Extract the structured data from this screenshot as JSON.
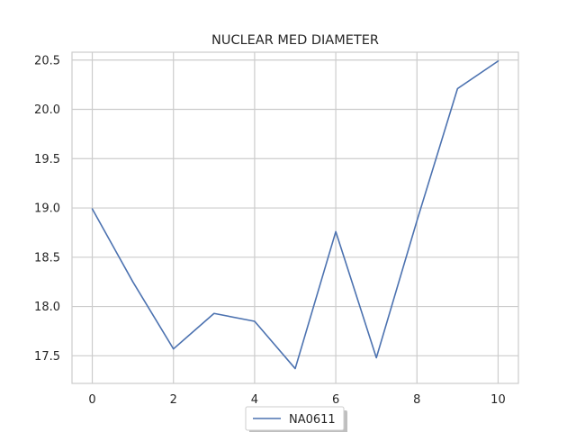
{
  "chart_data": {
    "type": "line",
    "title": "NUCLEAR MED DIAMETER",
    "xlabel": "",
    "ylabel": "",
    "xlim": [
      -0.5,
      10.5
    ],
    "ylim": [
      17.22,
      20.58
    ],
    "xticks": [
      0,
      2,
      4,
      6,
      8,
      10
    ],
    "yticks": [
      17.5,
      18.0,
      18.5,
      19.0,
      19.5,
      20.0,
      20.5
    ],
    "ytick_labels": [
      "17.5",
      "18.0",
      "18.5",
      "19.0",
      "19.5",
      "20.0",
      "20.5"
    ],
    "grid": true,
    "legend_position": "bottom-center",
    "series": [
      {
        "name": "NA0611",
        "color": "#4c72b0",
        "x": [
          0,
          1,
          2,
          3,
          4,
          5,
          6,
          7,
          8,
          9,
          10
        ],
        "values": [
          18.99,
          18.25,
          17.57,
          17.93,
          17.85,
          17.37,
          18.76,
          17.48,
          18.87,
          20.21,
          20.49
        ]
      }
    ]
  }
}
